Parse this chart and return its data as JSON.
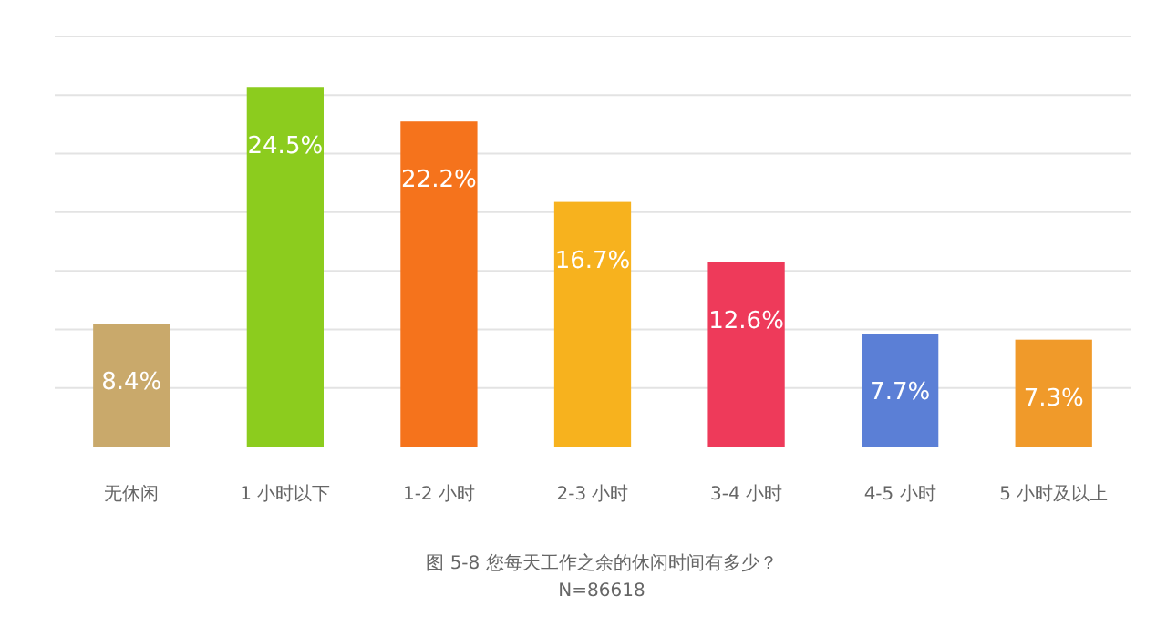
{
  "chart_data": {
    "type": "bar",
    "categories": [
      "无休闲",
      "1 小时以下",
      "1-2 小时",
      "2-3 小时",
      "3-4 小时",
      "4-5 小时",
      "5 小时及以上"
    ],
    "values": [
      8.4,
      24.5,
      22.2,
      16.7,
      12.6,
      7.7,
      7.3
    ],
    "colors": [
      "#c9a96b",
      "#8ccc1e",
      "#f5731c",
      "#f7b21e",
      "#ee3a5a",
      "#5b7fd6",
      "#f09a2a"
    ],
    "value_labels": [
      "8.4%",
      "24.5%",
      "22.2%",
      "16.7%",
      "12.6%",
      "7.7%",
      "7.3%"
    ],
    "ylim": [
      0,
      28
    ],
    "yticks": [
      {
        "value": 4,
        "label": null
      },
      {
        "value": 8,
        "label": null
      },
      {
        "value": 12,
        "label": null
      },
      {
        "value": 16,
        "label": null
      },
      {
        "value": 20,
        "label": null
      },
      {
        "value": 24,
        "label": null
      },
      {
        "value": 28,
        "label": null
      }
    ],
    "grid": "y",
    "tick_labels": "x",
    "annotations": [
      "图 5-8 您每天工作之余的休闲时间有多少？",
      "N=86618"
    ]
  }
}
